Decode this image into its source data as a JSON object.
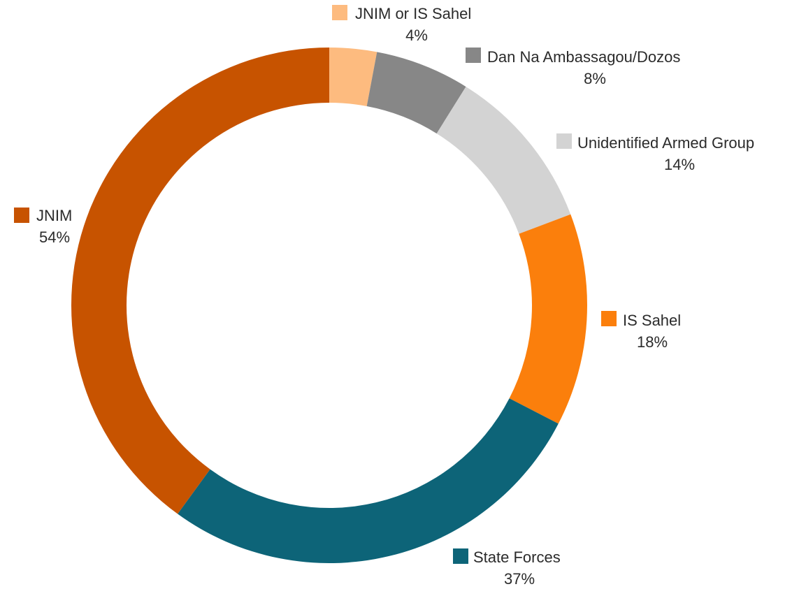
{
  "chart_data": {
    "type": "pie",
    "variant": "donut",
    "title": "",
    "legend": "labels beside slices",
    "slices": [
      {
        "label": "JNIM or IS Sahel",
        "value_label": "4%",
        "value": 4,
        "color": "#FDBB7F"
      },
      {
        "label": "Dan Na Ambassagou/Dozos",
        "value_label": "8%",
        "value": 8,
        "color": "#878787"
      },
      {
        "label": "Unidentified Armed Group",
        "value_label": "14%",
        "value": 14,
        "color": "#D3D3D3"
      },
      {
        "label": "IS Sahel",
        "value_label": "18%",
        "value": 18,
        "color": "#FB7F0C"
      },
      {
        "label": "State Forces",
        "value_label": "37%",
        "value": 37,
        "color": "#0D6478"
      },
      {
        "label": "JNIM",
        "value_label": "54%",
        "value": 54,
        "color": "#C75300"
      }
    ]
  }
}
